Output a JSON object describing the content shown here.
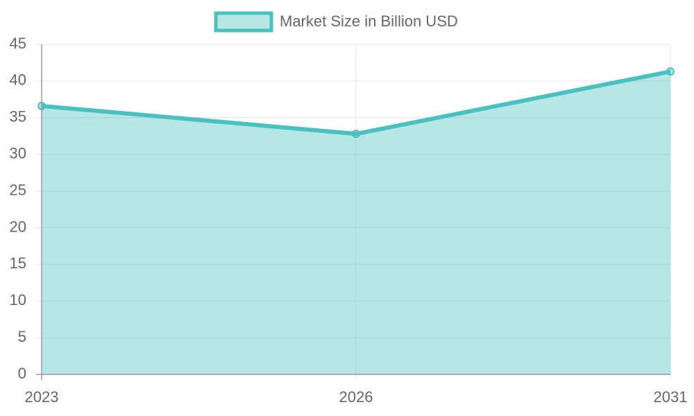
{
  "chart_data": {
    "type": "area",
    "categories": [
      "2023",
      "2026",
      "2031"
    ],
    "series": [
      {
        "name": "Market Size in Billion USD",
        "color": "#4bc0c0",
        "values": [
          36.6,
          32.8,
          41.3
        ]
      }
    ],
    "ylim": [
      0,
      45
    ],
    "yticks": [
      0,
      5,
      10,
      15,
      20,
      25,
      30,
      35,
      40,
      45
    ],
    "grid": true,
    "legend": "top"
  }
}
